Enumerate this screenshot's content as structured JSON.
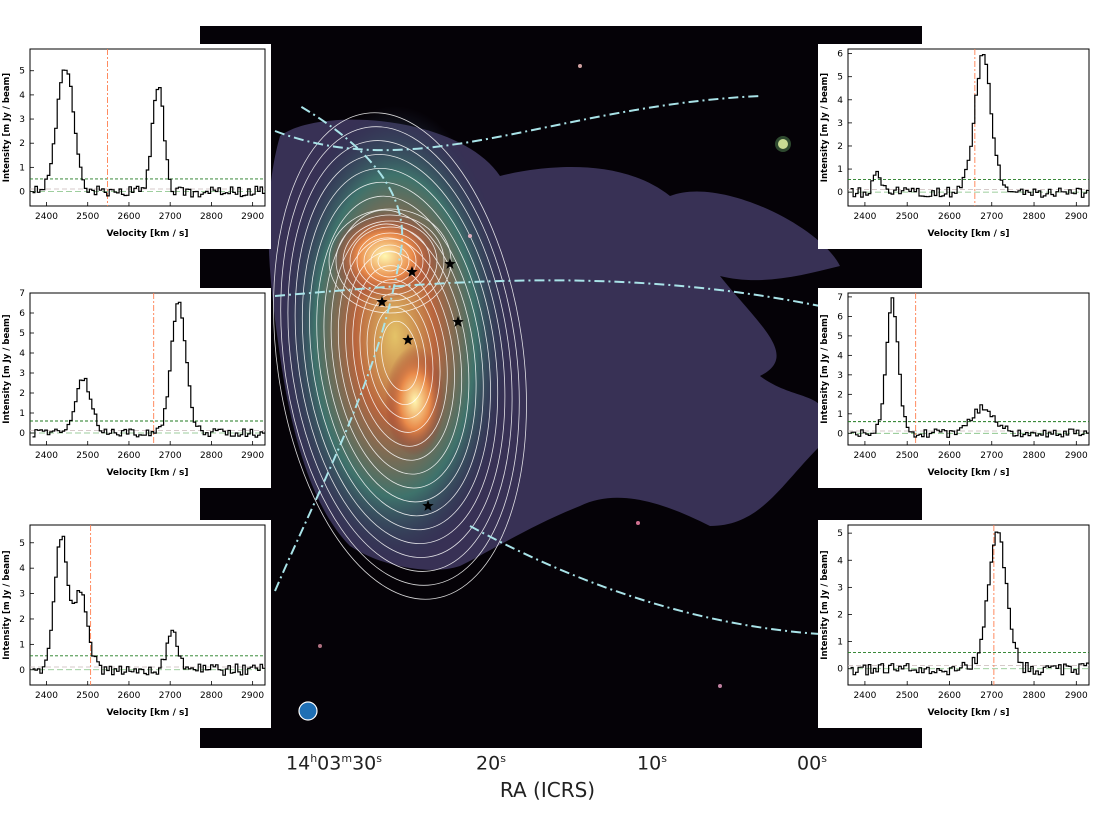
{
  "figure": {
    "x_axis_title": "RA (ICRS)",
    "ra_ticks": [
      {
        "h": "14",
        "hu": "h",
        "m": "03",
        "mu": "m",
        "s": "30",
        "su": "s"
      },
      {
        "s": "20",
        "su": "s"
      },
      {
        "s": "10",
        "su": "s"
      },
      {
        "s": "00",
        "su": "s"
      }
    ],
    "colors": {
      "contour": "#ffffff",
      "ellipse": "#a9e3e8",
      "beam": "#1f6fb4",
      "star": "#000000",
      "spectrum": "#000000",
      "rms_line": "#1f7a1f",
      "zero_line": "#7fbf7f",
      "velocity_line": "#ff7f50"
    }
  },
  "chart_data": [
    {
      "type": "line",
      "panel": "top-left",
      "xlabel": "Velocity [km / s]",
      "ylabel": "Intensity [m Jy / beam]",
      "xlim": [
        2360,
        2930
      ],
      "ylim": [
        -0.6,
        5.9
      ],
      "xticks": [
        2400,
        2500,
        2600,
        2700,
        2800,
        2900
      ],
      "yticks": [
        0,
        1,
        2,
        3,
        4,
        5
      ],
      "rms": 0.52,
      "v_sys": 2548,
      "components": [
        {
          "center": 2443,
          "amp": 5.2,
          "sigma": 20
        },
        {
          "center": 2668,
          "amp": 4.3,
          "sigma": 14
        }
      ]
    },
    {
      "type": "line",
      "panel": "top-right",
      "xlabel": "Velocity [km / s]",
      "ylabel": "Intensity [m Jy / beam]",
      "xlim": [
        2360,
        2930
      ],
      "ylim": [
        -0.6,
        6.2
      ],
      "xticks": [
        2400,
        2500,
        2600,
        2700,
        2800,
        2900
      ],
      "yticks": [
        0,
        1,
        2,
        3,
        4,
        5,
        6
      ],
      "rms": 0.55,
      "v_sys": 2660,
      "components": [
        {
          "center": 2428,
          "amp": 0.8,
          "sigma": 10
        },
        {
          "center": 2676,
          "amp": 5.8,
          "sigma": 20
        }
      ]
    },
    {
      "type": "line",
      "panel": "middle-left",
      "xlabel": "Velocity [km / s]",
      "ylabel": "Intensity [m Jy / beam]",
      "xlim": [
        2360,
        2930
      ],
      "ylim": [
        -0.6,
        7
      ],
      "xticks": [
        2400,
        2500,
        2600,
        2700,
        2800,
        2900
      ],
      "yticks": [
        0,
        1,
        2,
        3,
        4,
        5,
        6,
        7
      ],
      "rms": 0.6,
      "v_sys": 2660,
      "components": [
        {
          "center": 2487,
          "amp": 2.7,
          "sigma": 18
        },
        {
          "center": 2718,
          "amp": 6.5,
          "sigma": 18
        }
      ]
    },
    {
      "type": "line",
      "panel": "middle-right",
      "xlabel": "Velocity [km / s]",
      "ylabel": "Intensity [m Jy / beam]",
      "xlim": [
        2360,
        2930
      ],
      "ylim": [
        -0.6,
        7.2
      ],
      "xticks": [
        2400,
        2500,
        2600,
        2700,
        2800,
        2900
      ],
      "yticks": [
        0,
        1,
        2,
        3,
        4,
        5,
        6,
        7
      ],
      "rms": 0.6,
      "v_sys": 2520,
      "components": [
        {
          "center": 2462,
          "amp": 6.8,
          "sigma": 14
        },
        {
          "center": 2677,
          "amp": 1.3,
          "sigma": 28
        }
      ]
    },
    {
      "type": "line",
      "panel": "bottom-left",
      "xlabel": "Velocity [km / s]",
      "ylabel": "Intensity [m Jy / beam]",
      "xlim": [
        2360,
        2930
      ],
      "ylim": [
        -0.6,
        5.7
      ],
      "xticks": [
        2400,
        2500,
        2600,
        2700,
        2800,
        2900
      ],
      "yticks": [
        0,
        1,
        2,
        3,
        4,
        5
      ],
      "rms": 0.55,
      "v_sys": 2507,
      "components": [
        {
          "center": 2432,
          "amp": 5.2,
          "sigma": 15
        },
        {
          "center": 2478,
          "amp": 3.0,
          "sigma": 18
        },
        {
          "center": 2703,
          "amp": 1.55,
          "sigma": 14
        }
      ]
    },
    {
      "type": "line",
      "panel": "bottom-right",
      "xlabel": "Velocity [km / s]",
      "ylabel": "Intensity [m Jy / beam]",
      "xlim": [
        2360,
        2930
      ],
      "ylim": [
        -0.6,
        5.3
      ],
      "xticks": [
        2400,
        2500,
        2600,
        2700,
        2800,
        2900
      ],
      "yticks": [
        0,
        1,
        2,
        3,
        4,
        5
      ],
      "rms": 0.6,
      "v_sys": 2705,
      "components": [
        {
          "center": 2710,
          "amp": 5.0,
          "sigma": 22
        }
      ]
    }
  ]
}
